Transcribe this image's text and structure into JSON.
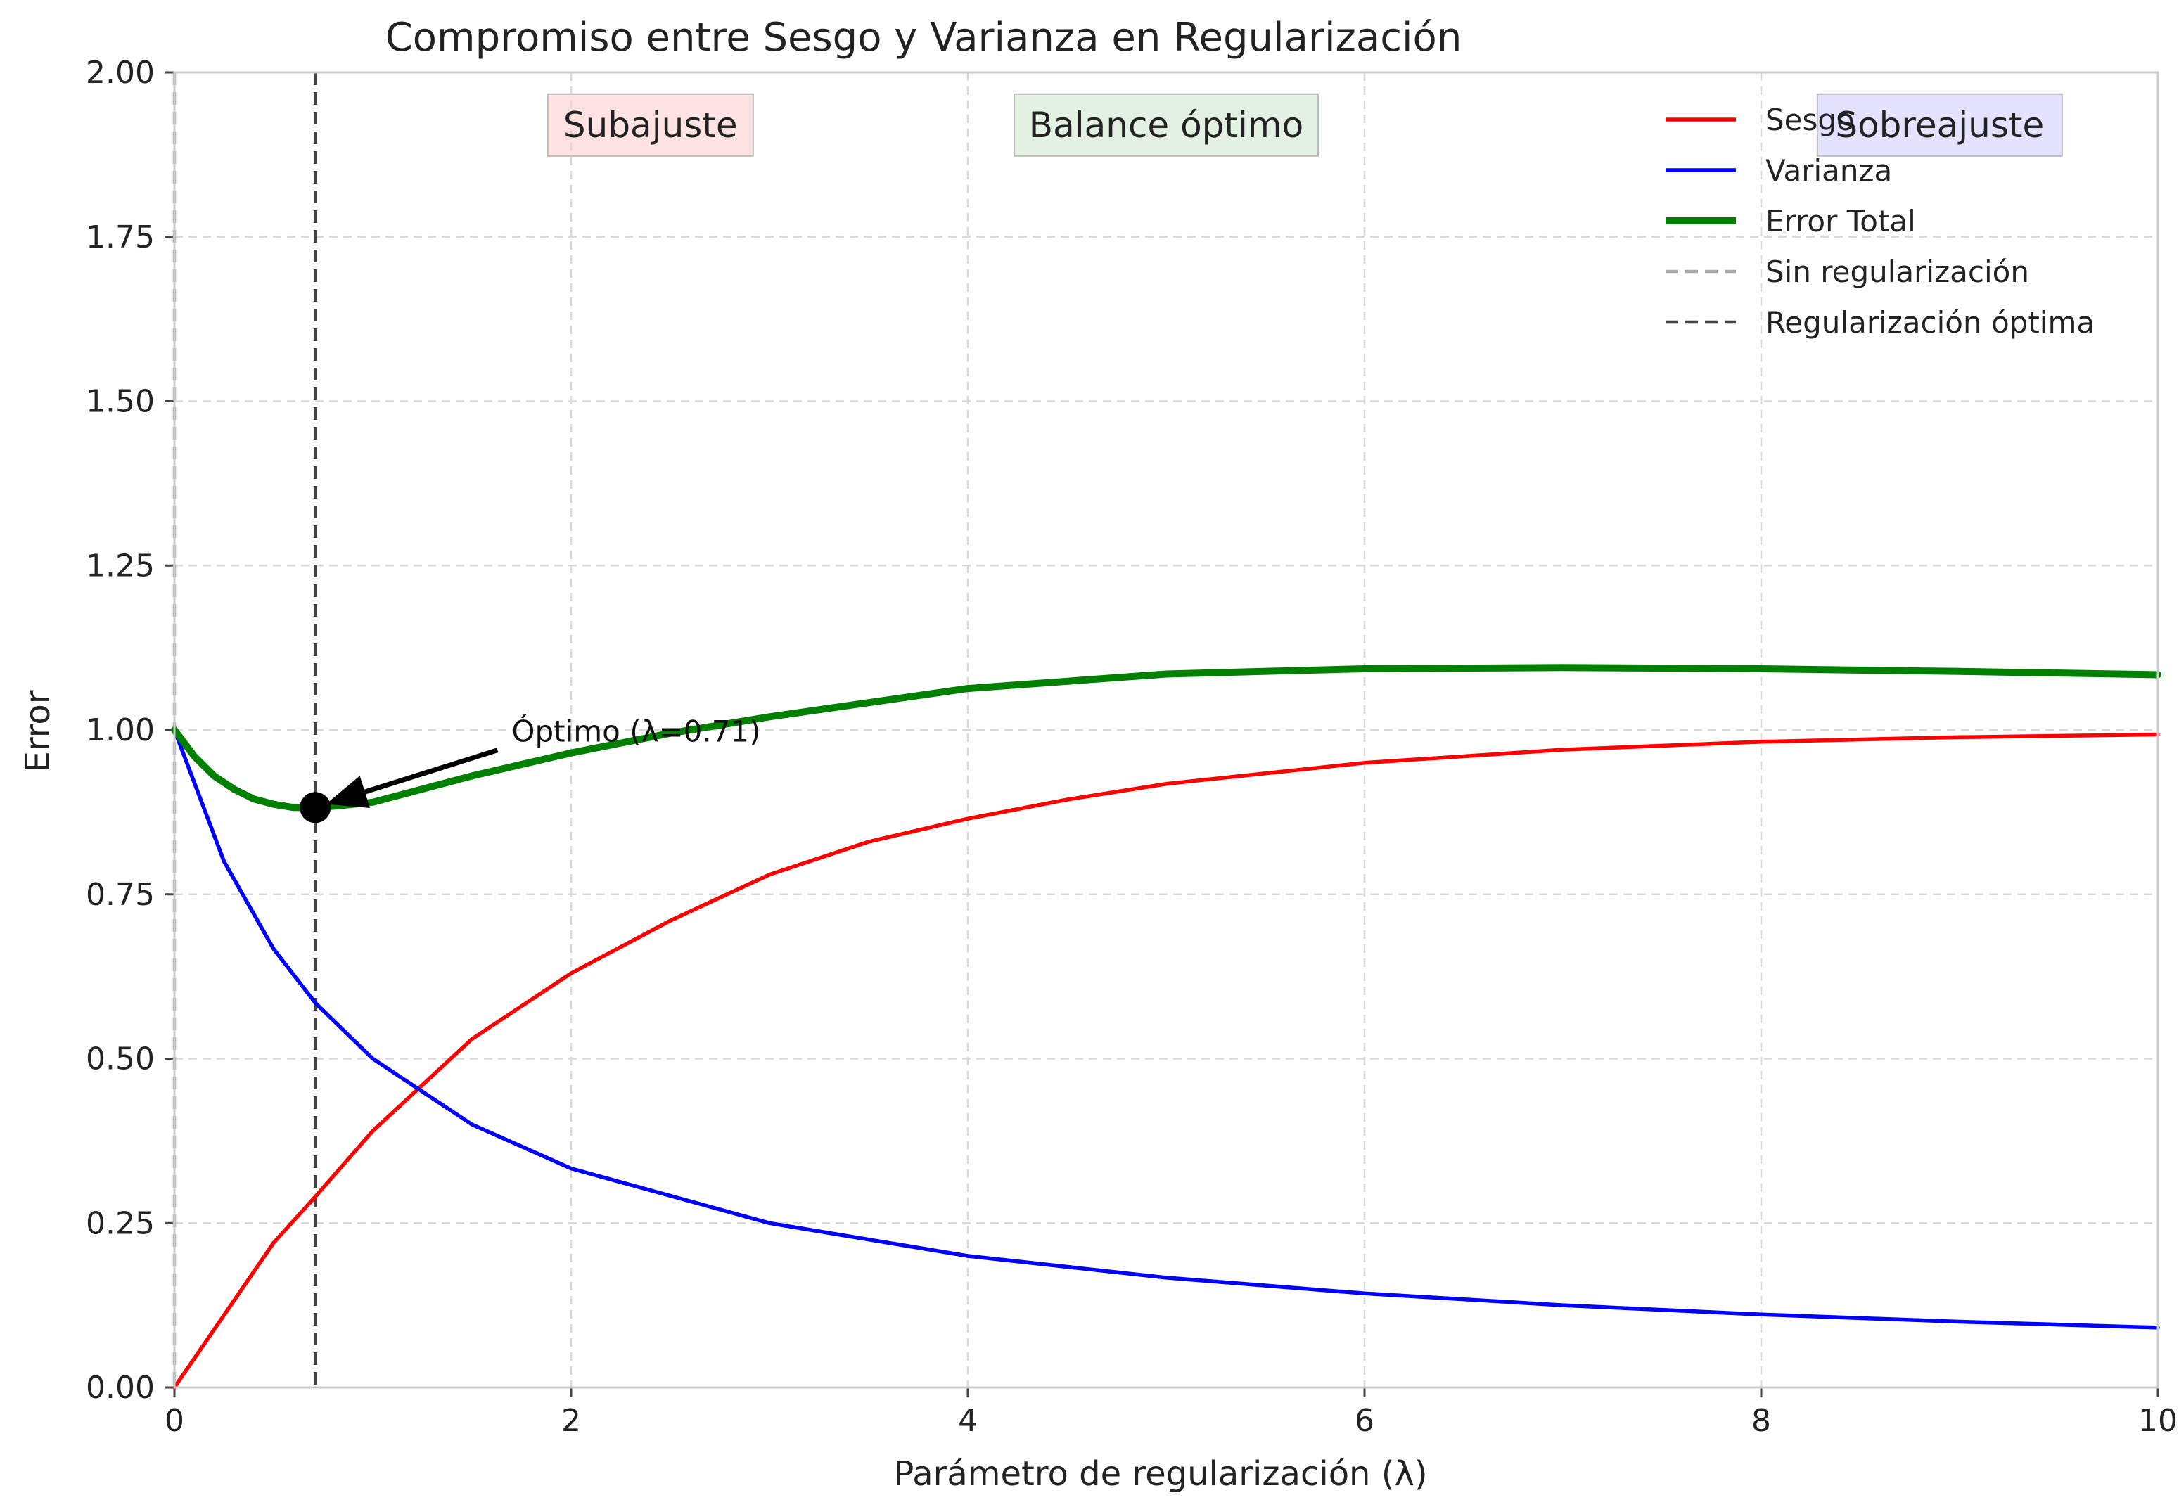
{
  "chart_data": {
    "type": "line",
    "title": "Compromiso entre Sesgo y Varianza en Regularización",
    "xlabel": "Parámetro de regularización (λ)",
    "ylabel": "Error",
    "xlim": [
      0,
      10
    ],
    "ylim": [
      0,
      2
    ],
    "x_ticks": [
      "0",
      "2",
      "4",
      "6",
      "8",
      "10"
    ],
    "y_ticks": [
      "0.00",
      "0.25",
      "0.50",
      "0.75",
      "1.00",
      "1.25",
      "1.50",
      "1.75",
      "2.00"
    ],
    "grid": true,
    "legend_position": "top-right",
    "series": [
      {
        "name": "Sesgo",
        "color": "#ff0000",
        "x": [
          0,
          0.5,
          0.71,
          1,
          1.5,
          2,
          2.5,
          3,
          3.5,
          4,
          4.5,
          5,
          6,
          7,
          8,
          9,
          10
        ],
        "values": [
          0,
          0.22,
          0.29,
          0.39,
          0.53,
          0.63,
          0.71,
          0.78,
          0.83,
          0.865,
          0.894,
          0.918,
          0.95,
          0.97,
          0.982,
          0.989,
          0.993
        ]
      },
      {
        "name": "Varianza",
        "color": "#0000ff",
        "x": [
          0,
          0.25,
          0.5,
          0.71,
          1,
          1.5,
          2,
          3,
          4,
          5,
          6,
          7,
          8,
          9,
          10
        ],
        "values": [
          1.0,
          0.8,
          0.667,
          0.585,
          0.5,
          0.4,
          0.333,
          0.25,
          0.2,
          0.167,
          0.143,
          0.125,
          0.111,
          0.1,
          0.091
        ]
      },
      {
        "name": "Error Total",
        "color": "#008000",
        "x": [
          0,
          0.1,
          0.2,
          0.3,
          0.4,
          0.5,
          0.6,
          0.71,
          0.8,
          1,
          1.5,
          2,
          2.5,
          3,
          4,
          5,
          6,
          7,
          8,
          9,
          10
        ],
        "values": [
          1.0,
          0.96,
          0.93,
          0.91,
          0.895,
          0.887,
          0.882,
          0.882,
          0.884,
          0.89,
          0.93,
          0.965,
          0.995,
          1.02,
          1.063,
          1.085,
          1.093,
          1.095,
          1.093,
          1.089,
          1.084
        ]
      }
    ],
    "reference_lines": [
      {
        "name": "Sin regularización",
        "x": 0,
        "color": "#aaaaaa"
      },
      {
        "name": "Regularización óptima",
        "x": 0.71,
        "color": "#444444"
      }
    ],
    "optimum_point": {
      "x": 0.71,
      "y": 0.882
    },
    "annotation": {
      "text": "Óptimo (λ=0.71)",
      "x": 1.7,
      "y": 0.98
    },
    "regions": [
      {
        "label": "Subajuste",
        "x": 2.4,
        "y": 1.92,
        "color": "#ffcccc"
      },
      {
        "label": "Balance óptimo",
        "x": 5.0,
        "y": 1.92,
        "color": "#cce6cc"
      },
      {
        "label": "Sobreajuste",
        "x": 8.9,
        "y": 1.92,
        "color": "#ccccff"
      }
    ]
  }
}
